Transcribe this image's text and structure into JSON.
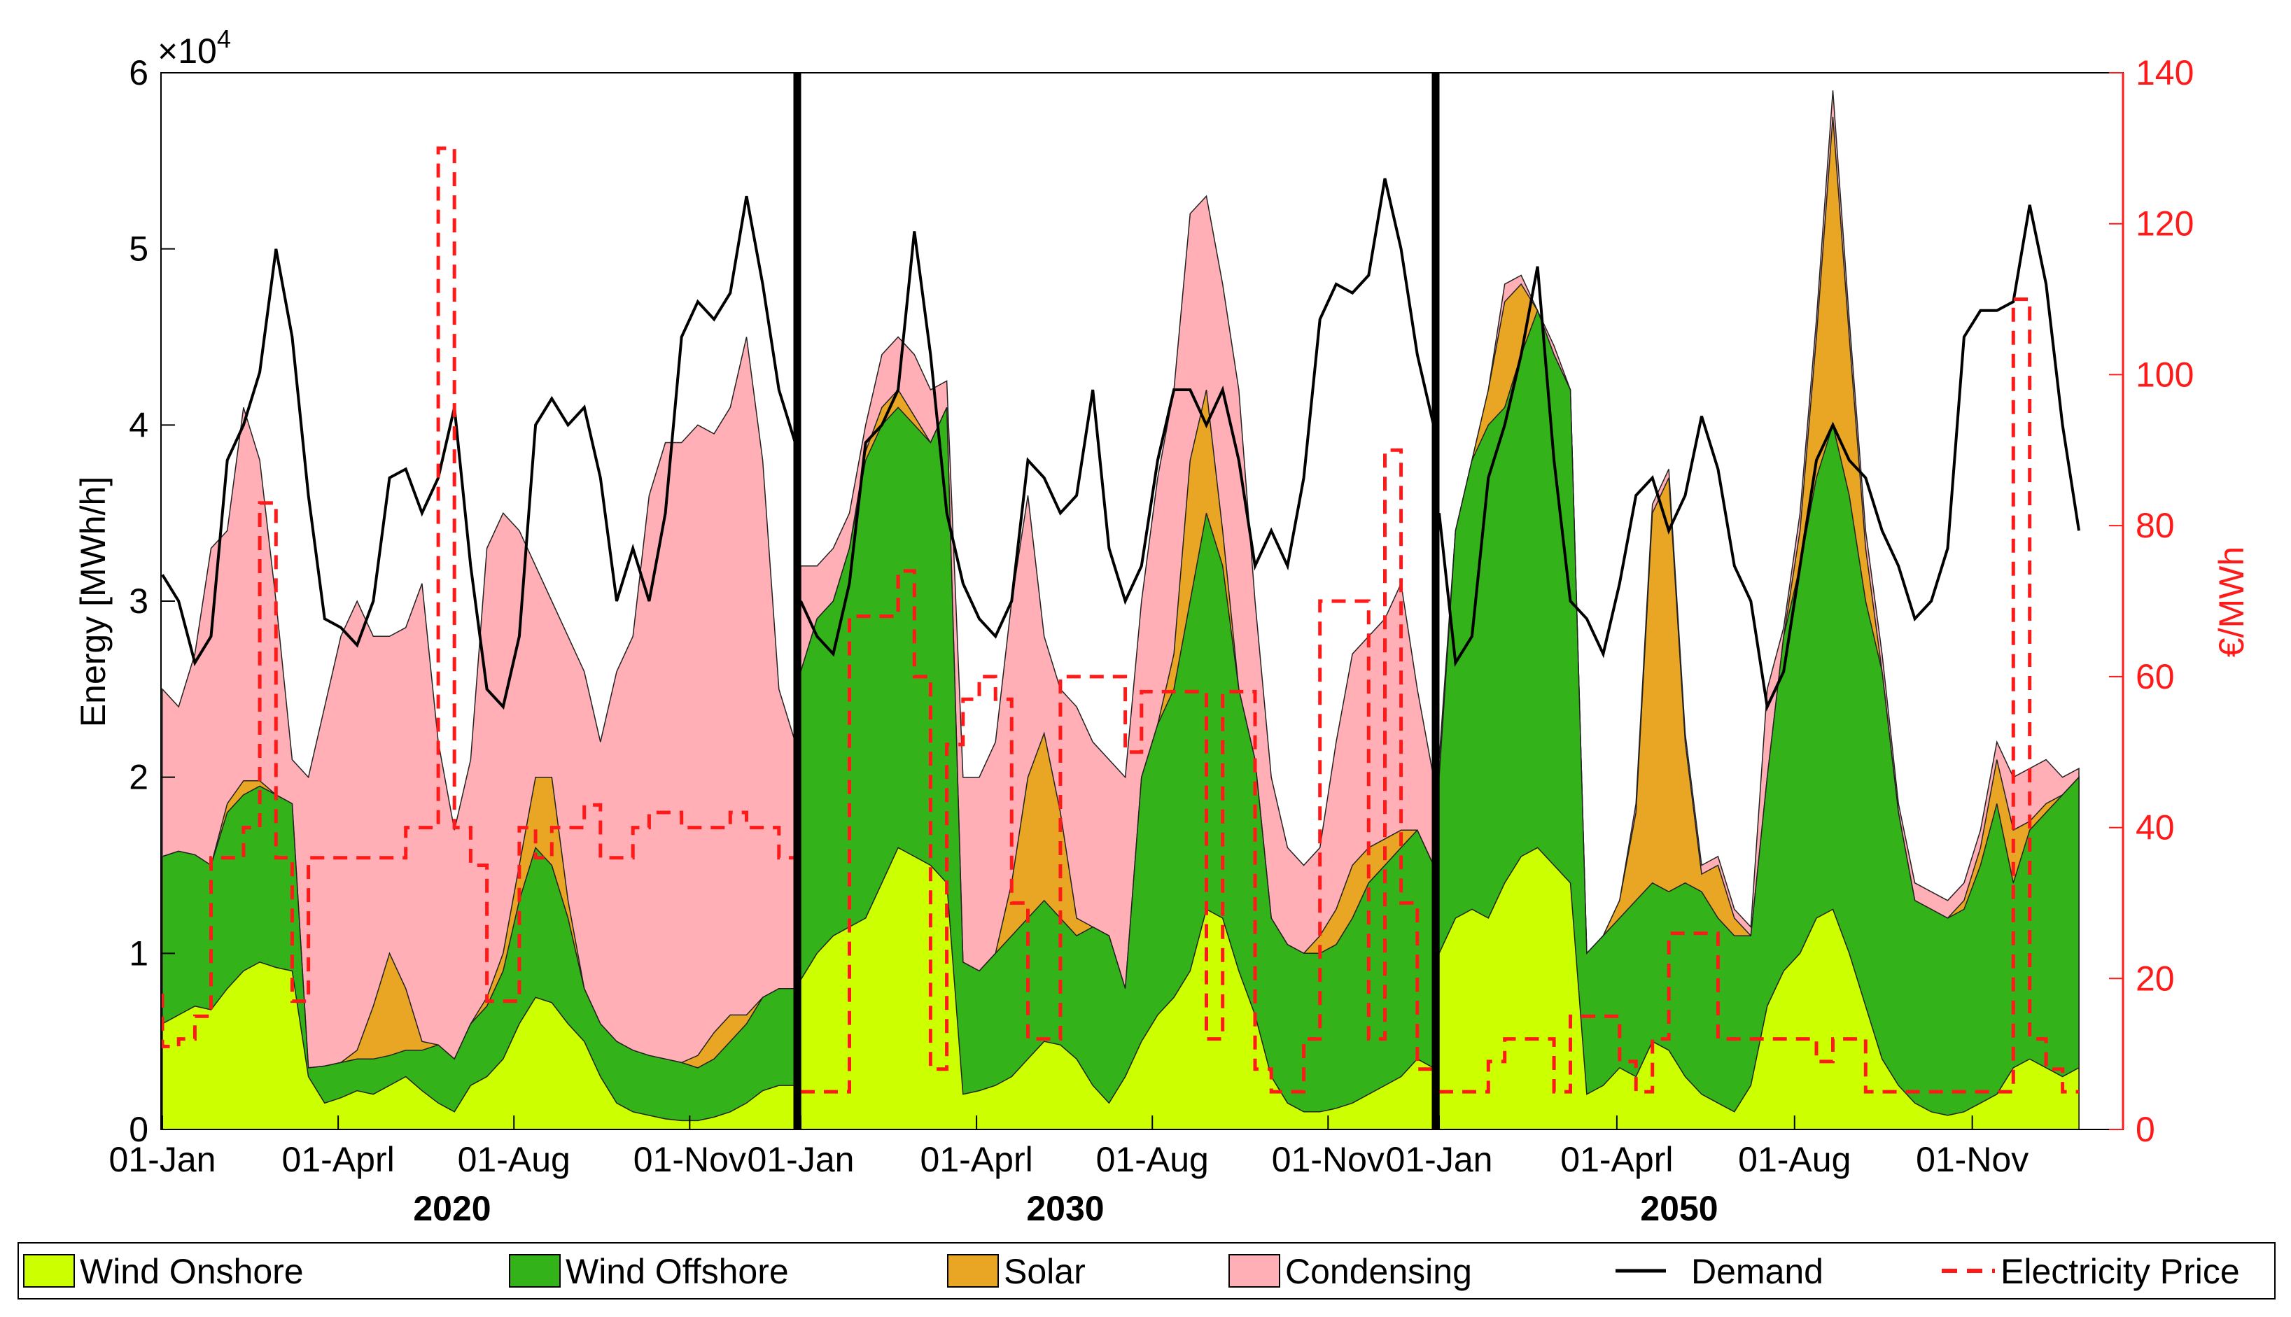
{
  "chart_data": {
    "type": "area",
    "y_label": "Energy [MWh/h]",
    "y_multiplier": "×10",
    "y_multiplier_exp": "4",
    "y_ticks": [
      "0",
      "1",
      "2",
      "3",
      "4",
      "5",
      "6"
    ],
    "y_range": [
      0,
      60000
    ],
    "y2_label": "€/MWh",
    "y2_ticks": [
      "0",
      "20",
      "40",
      "60",
      "80",
      "100",
      "120",
      "140"
    ],
    "y2_range": [
      0,
      140
    ],
    "x_ticks": [
      "01-Jan",
      "01-Aprl",
      "01-Aug",
      "01-Nov",
      "01-Jan",
      "01-Aprl",
      "01-Aug",
      "01-Nov",
      "01-Jan",
      "01-Aprl",
      "01-Aug",
      "01-Nov"
    ],
    "panels": [
      {
        "year": "2020",
        "x": [
          0,
          1,
          2,
          3,
          4,
          5,
          6,
          7,
          8,
          9,
          10,
          11,
          12,
          13,
          14,
          15,
          16,
          17,
          18,
          19,
          20,
          21,
          22,
          23,
          24,
          25,
          26,
          27,
          28,
          29,
          30,
          31,
          32,
          33,
          34,
          35,
          36,
          37,
          38,
          39
        ],
        "wind_onshore": [
          6000,
          6500,
          7000,
          6800,
          8000,
          9000,
          9500,
          9200,
          9000,
          3000,
          1500,
          1800,
          2200,
          2000,
          2500,
          3000,
          2200,
          1500,
          1000,
          2500,
          3000,
          4000,
          6000,
          7500,
          7200,
          6000,
          5000,
          3000,
          1500,
          1000,
          800,
          600,
          500,
          500,
          700,
          1000,
          1500,
          2200,
          2500,
          2500
        ],
        "wind_offshore": [
          15500,
          15800,
          15600,
          15000,
          18000,
          19000,
          19500,
          19000,
          18500,
          3500,
          3600,
          3800,
          4000,
          4000,
          4200,
          4500,
          4500,
          4800,
          4000,
          6000,
          7000,
          9000,
          13000,
          16000,
          15000,
          12000,
          8000,
          6000,
          5000,
          4500,
          4200,
          4000,
          3800,
          3500,
          4000,
          5000,
          6000,
          7500,
          8000,
          8000
        ],
        "solar": [
          15500,
          15800,
          15600,
          15000,
          18500,
          19800,
          19800,
          19000,
          18500,
          3500,
          3600,
          3800,
          4500,
          7000,
          10000,
          8000,
          5000,
          4800,
          4000,
          6000,
          7500,
          10000,
          15000,
          20000,
          20000,
          13000,
          8000,
          6000,
          5000,
          4500,
          4200,
          4000,
          3800,
          4200,
          5500,
          6500,
          6500,
          7500,
          8000,
          8000
        ],
        "condensing": [
          25000,
          24000,
          27000,
          33000,
          34000,
          41000,
          38000,
          30000,
          21000,
          20000,
          24000,
          28000,
          30000,
          28000,
          28000,
          28500,
          31000,
          22000,
          17000,
          21000,
          33000,
          35000,
          34000,
          32000,
          30000,
          28000,
          26000,
          22000,
          26000,
          28000,
          36000,
          39000,
          39000,
          40000,
          39500,
          41000,
          45000,
          38000,
          25000,
          22000
        ],
        "demand": [
          31500,
          30000,
          26500,
          28000,
          38000,
          40000,
          43000,
          50000,
          45000,
          36000,
          29000,
          28500,
          27500,
          30000,
          37000,
          37500,
          35000,
          37000,
          41000,
          32000,
          25000,
          24000,
          28000,
          40000,
          41500,
          40000,
          41000,
          37000,
          30000,
          33000,
          30000,
          35000,
          45000,
          47000,
          46000,
          47500,
          53000,
          48000,
          42000,
          39000
        ],
        "price": [
          18,
          11,
          12,
          15,
          36,
          36,
          40,
          83,
          36,
          17,
          36,
          36,
          36,
          36,
          36,
          36,
          40,
          40,
          130,
          40,
          35,
          17,
          17,
          40,
          36,
          40,
          40,
          43,
          36,
          36,
          40,
          42,
          42,
          40,
          40,
          40,
          42,
          40,
          40,
          36
        ]
      },
      {
        "year": "2030",
        "x": [
          0,
          1,
          2,
          3,
          4,
          5,
          6,
          7,
          8,
          9,
          10,
          11,
          12,
          13,
          14,
          15,
          16,
          17,
          18,
          19,
          20,
          21,
          22,
          23,
          24,
          25,
          26,
          27,
          28,
          29,
          30,
          31,
          32,
          33,
          34,
          35,
          36,
          37,
          38,
          39
        ],
        "wind_onshore": [
          8500,
          10000,
          11000,
          11500,
          12000,
          14000,
          16000,
          15500,
          15000,
          14000,
          2000,
          2200,
          2500,
          3000,
          4000,
          5000,
          4800,
          4000,
          2500,
          1500,
          3000,
          5000,
          6500,
          7500,
          9000,
          12500,
          12000,
          9000,
          6500,
          3000,
          1500,
          1000,
          1000,
          1200,
          1500,
          2000,
          2500,
          3000,
          4000,
          3500
        ],
        "wind_offshore": [
          26000,
          29000,
          30000,
          33000,
          38000,
          40000,
          41000,
          40000,
          39000,
          41000,
          9500,
          9000,
          10000,
          11000,
          12000,
          13000,
          12000,
          11000,
          11500,
          11000,
          8000,
          20000,
          23000,
          25000,
          30000,
          35000,
          32000,
          25000,
          21000,
          12000,
          10500,
          10000,
          10000,
          10500,
          12000,
          14000,
          15000,
          16000,
          17000,
          15000
        ],
        "solar": [
          26000,
          29000,
          30000,
          33000,
          38500,
          41000,
          42000,
          40500,
          39000,
          41000,
          9500,
          9000,
          10000,
          14000,
          20000,
          22500,
          18000,
          12000,
          11500,
          11000,
          8000,
          20000,
          23000,
          27000,
          38000,
          42000,
          34000,
          25000,
          21000,
          12000,
          10500,
          10000,
          11000,
          12500,
          15000,
          16000,
          16500,
          17000,
          17000,
          15000
        ],
        "condensing": [
          32000,
          32000,
          33000,
          35000,
          40000,
          44000,
          45000,
          44000,
          42000,
          42500,
          20000,
          20000,
          22000,
          30000,
          36000,
          28000,
          25000,
          24000,
          22000,
          21000,
          20000,
          30000,
          37000,
          42000,
          52000,
          53000,
          48000,
          42000,
          30000,
          20000,
          16000,
          15000,
          16000,
          22000,
          27000,
          28000,
          29000,
          31000,
          25000,
          20000
        ],
        "demand": [
          30000,
          28000,
          27000,
          31000,
          39000,
          40000,
          42000,
          51000,
          44000,
          35000,
          31000,
          29000,
          28000,
          30000,
          38000,
          37000,
          35000,
          36000,
          42000,
          33000,
          30000,
          32000,
          38000,
          42000,
          42000,
          40000,
          42000,
          38000,
          32000,
          34000,
          32000,
          37000,
          46000,
          48000,
          47500,
          48500,
          54000,
          50000,
          44000,
          40000
        ],
        "price": [
          5,
          5,
          5,
          5,
          68,
          68,
          68,
          74,
          60,
          8,
          51,
          57,
          60,
          57,
          30,
          12,
          12,
          60,
          60,
          60,
          60,
          50,
          58,
          58,
          58,
          58,
          12,
          58,
          58,
          8,
          5,
          5,
          12,
          70,
          70,
          70,
          12,
          90,
          30,
          8
        ]
      },
      {
        "year": "2050",
        "x": [
          0,
          1,
          2,
          3,
          4,
          5,
          6,
          7,
          8,
          9,
          10,
          11,
          12,
          13,
          14,
          15,
          16,
          17,
          18,
          19,
          20,
          21,
          22,
          23,
          24,
          25,
          26,
          27,
          28,
          29,
          30,
          31,
          32,
          33,
          34,
          35,
          36,
          37,
          38,
          39
        ],
        "wind_onshore": [
          10000,
          12000,
          12500,
          12000,
          14000,
          15500,
          16000,
          15000,
          14000,
          2000,
          2500,
          3500,
          3000,
          5000,
          4500,
          3000,
          2000,
          1500,
          1000,
          2500,
          7000,
          9000,
          10000,
          12000,
          12500,
          10000,
          7000,
          4000,
          2500,
          1500,
          1000,
          800,
          1000,
          1500,
          2000,
          3500,
          4000,
          3500,
          3000,
          3500
        ],
        "wind_offshore": [
          20000,
          34000,
          38000,
          40000,
          41000,
          44000,
          46500,
          44000,
          42000,
          10000,
          11000,
          12000,
          13000,
          14000,
          13500,
          14000,
          13500,
          12000,
          11000,
          11000,
          20000,
          28000,
          32000,
          37000,
          40000,
          36000,
          30000,
          26000,
          18000,
          13000,
          12500,
          12000,
          12500,
          15000,
          18500,
          14000,
          17000,
          18000,
          19000,
          20000
        ],
        "solar": [
          20000,
          34000,
          38000,
          42000,
          47000,
          48000,
          46500,
          44000,
          42000,
          10000,
          11000,
          13000,
          18000,
          35000,
          37000,
          22000,
          14500,
          15000,
          12000,
          11000,
          20000,
          28000,
          34000,
          45000,
          57500,
          45000,
          33000,
          26000,
          18000,
          13000,
          12500,
          12000,
          13000,
          16000,
          21000,
          17000,
          17500,
          18500,
          19000,
          20000
        ],
        "condensing": [
          21000,
          34000,
          38000,
          42000,
          48000,
          48500,
          46500,
          44500,
          42000,
          10000,
          11000,
          13000,
          18500,
          35500,
          37500,
          22500,
          15000,
          15500,
          12500,
          11500,
          25000,
          28500,
          35000,
          46000,
          59000,
          46000,
          34000,
          27000,
          18500,
          14000,
          13500,
          13000,
          14000,
          17000,
          22000,
          20000,
          20500,
          21000,
          20000,
          20500
        ],
        "demand": [
          35000,
          26500,
          28000,
          37000,
          40000,
          44000,
          49000,
          38000,
          30000,
          29000,
          27000,
          31000,
          36000,
          37000,
          34000,
          36000,
          40500,
          37500,
          32000,
          30000,
          24000,
          26000,
          32000,
          38000,
          40000,
          38000,
          37000,
          34000,
          32000,
          29000,
          30000,
          33000,
          45000,
          46500,
          46500,
          47000,
          52500,
          48000,
          40000,
          34000
        ],
        "price": [
          5,
          5,
          5,
          5,
          9,
          12,
          12,
          12,
          5,
          15,
          15,
          15,
          9,
          5,
          12,
          26,
          26,
          26,
          12,
          12,
          12,
          12,
          12,
          12,
          9,
          12,
          12,
          5,
          5,
          5,
          5,
          5,
          5,
          5,
          5,
          5,
          110,
          12,
          8,
          5
        ]
      }
    ],
    "legend": [
      {
        "key": "wind_onshore",
        "label": "Wind Onshore",
        "kind": "fill",
        "color": "#CCFF00"
      },
      {
        "key": "wind_offshore",
        "label": "Wind Offshore",
        "kind": "fill",
        "color": "#33B21A"
      },
      {
        "key": "solar",
        "label": "Solar",
        "kind": "fill",
        "color": "#E8A624"
      },
      {
        "key": "condensing",
        "label": "Condensing",
        "kind": "fill",
        "color": "#FFAFB5"
      },
      {
        "key": "demand",
        "label": "Demand",
        "kind": "line",
        "color": "#000000"
      },
      {
        "key": "price",
        "label": "Electricity Price",
        "kind": "dash",
        "color": "#FF1A1A"
      }
    ]
  }
}
